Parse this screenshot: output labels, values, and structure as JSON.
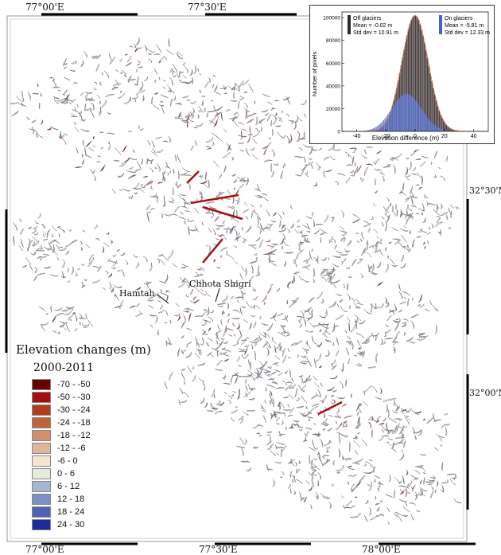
{
  "coordinates": {
    "top_left": "77°00'E",
    "top_mid": "77°30'E",
    "bottom_left": "77°00'E",
    "bottom_mid": "77°30'E",
    "bottom_right": "78°00'E",
    "right_upper": "32°30'N",
    "right_lower": "32°00'N"
  },
  "places": {
    "hamtah": "Hamtah",
    "chhota_shigri": "Chhota Shigri"
  },
  "legend": {
    "title": "Elevation changes (m)",
    "period": "2000-2011",
    "classes": [
      {
        "label": "-70 - -50",
        "color": "#6b0000"
      },
      {
        "label": "-50 - -30",
        "color": "#a50f0f"
      },
      {
        "label": "-30 - -24",
        "color": "#b43c1c"
      },
      {
        "label": "-24 - -18",
        "color": "#c0623c"
      },
      {
        "label": "-18 - -12",
        "color": "#d28e6e"
      },
      {
        "label": "-12 - -6",
        "color": "#e3b598"
      },
      {
        "label": "-6 - 0",
        "color": "#f6e4cf"
      },
      {
        "label": "0 - 6",
        "color": "#e4eadc"
      },
      {
        "label": "6 - 12",
        "color": "#a6b6d2"
      },
      {
        "label": "12 - 18",
        "color": "#7a90c6"
      },
      {
        "label": "18 - 24",
        "color": "#4d62b6"
      },
      {
        "label": "24 - 30",
        "color": "#1a2d96"
      }
    ]
  },
  "chart_data": {
    "type": "bar",
    "xlabel": "Elevation difference (m)",
    "ylabel": "Number of pixels",
    "xlim": [
      -50,
      50
    ],
    "ylim": [
      0,
      105000
    ],
    "xticks": [
      -40,
      -20,
      0,
      20,
      40
    ],
    "yticks": [
      0,
      20000,
      40000,
      60000,
      80000,
      100000
    ],
    "legend_position": "top",
    "series": [
      {
        "name": "Off glaciers",
        "mean_label": "Mean = -0.02 m",
        "std_label": "Std dev = 10.91 m",
        "color": "#4a4040",
        "mean": -0.02,
        "std": 10.91,
        "peak": 102000
      },
      {
        "name": "On glaciers",
        "mean_label": "Mean = -5.81 m",
        "std_label": "Std dev = 12.33 m",
        "color": "#5b74d6",
        "mean": -5.81,
        "std": 12.33,
        "peak": 33000
      }
    ]
  }
}
